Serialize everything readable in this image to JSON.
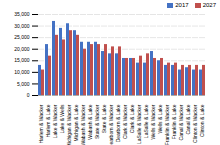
{
  "chart_data": {
    "type": "bar",
    "categories": [
      "Harlem & Wacker",
      "Harlem & Lake",
      "Lake & Wacker",
      "Lake & Wells",
      "Michigan & Wacker",
      "Michigan & Lake",
      "Wabash & Wacker",
      "Wabash & Lake",
      "State & Wacker",
      "State & Lake",
      "Dearborn & Wacker",
      "Dearborn & Lake",
      "Clark & Wacker",
      "Clark & Lake",
      "LaSalle & Wacker",
      "LaSalle & Lake",
      "Wells & Wacker",
      "Wells & Lake",
      "Franklin & Wacker",
      "Franklin & Lake",
      "Canal & Wacker",
      "Canal & Lake",
      "Clinton & Wacker",
      "Clinton & Lake"
    ],
    "series": [
      {
        "name": "2017",
        "color": "#4472C4",
        "values": [
          13000,
          22000,
          32000,
          29000,
          31000,
          28000,
          23000,
          23000,
          23000,
          19000,
          18000,
          18000,
          16000,
          16000,
          14000,
          14000,
          19000,
          15000,
          13000,
          13000,
          11000,
          12000,
          11000,
          11000
        ]
      },
      {
        "name": "2027",
        "color": "#C0504D",
        "values": [
          11000,
          17000,
          26000,
          24000,
          28000,
          26000,
          20000,
          22000,
          22000,
          22000,
          21000,
          21000,
          16000,
          16000,
          17000,
          18000,
          16000,
          16000,
          14000,
          14000,
          13000,
          13000,
          13000,
          13000
        ]
      }
    ],
    "ylim": [
      0,
      35000
    ],
    "yticks": [
      0,
      {
        "value": 5000,
        "label": "5,000"
      },
      {
        "value": 10000,
        "label": "10,000"
      },
      {
        "value": 15000,
        "label": "15,000"
      },
      {
        "value": 20000,
        "label": "20,000"
      },
      {
        "value": 25000,
        "label": "25,000"
      },
      {
        "value": 30000,
        "label": "30,000"
      },
      {
        "value": 35000,
        "label": "35,000"
      }
    ],
    "grid": true,
    "legend": "upper right"
  }
}
